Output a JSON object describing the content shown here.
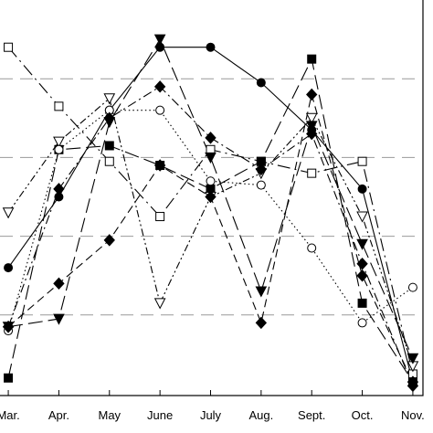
{
  "chart_data": {
    "type": "line",
    "title": "",
    "xlabel": "",
    "ylabel": "",
    "categories": [
      "Mar.",
      "Apr.",
      "May",
      "June",
      "July",
      "Aug.",
      "Sept.",
      "Oct.",
      "Nov."
    ],
    "x_range": [
      -0.2,
      8.2
    ],
    "ylim": [
      0,
      100
    ],
    "y_gridlines": [
      20,
      40,
      60,
      80
    ],
    "grid": "horizontal dashed",
    "legend": "none",
    "series": [
      {
        "marker": "filled-circle",
        "dash": "solid",
        "values": [
          32,
          50,
          72,
          88,
          88,
          79,
          67,
          52,
          3
        ]
      },
      {
        "marker": "open-square",
        "dash": "long-dash-dot",
        "values": [
          88,
          73,
          59,
          45,
          62,
          59,
          56,
          59,
          5
        ]
      },
      {
        "marker": "filled-square",
        "dash": "long-dash",
        "values": [
          4,
          62,
          63,
          58,
          52,
          59,
          85,
          23,
          3
        ]
      },
      {
        "marker": "down-triangle-open",
        "dash": "dash-dot-dot",
        "values": [
          46,
          64,
          75,
          23,
          50,
          56,
          70,
          45,
          7
        ]
      },
      {
        "marker": "open-circle",
        "dash": "dotted",
        "values": [
          16,
          62,
          72,
          72,
          54,
          53,
          37,
          18,
          27
        ]
      },
      {
        "marker": "filled-diamond",
        "dash": "dashed",
        "values": [
          17,
          28,
          39,
          58,
          50,
          18,
          76,
          30,
          3
        ]
      },
      {
        "marker": "down-triangle-filled",
        "dash": "long-dash",
        "values": [
          17,
          19,
          69,
          90,
          60,
          26,
          68,
          38,
          9
        ]
      },
      {
        "marker": "filled-diamond",
        "dash": "dash-dot",
        "values": [
          17,
          52,
          70,
          78,
          65,
          57,
          66,
          33,
          2
        ]
      }
    ]
  }
}
